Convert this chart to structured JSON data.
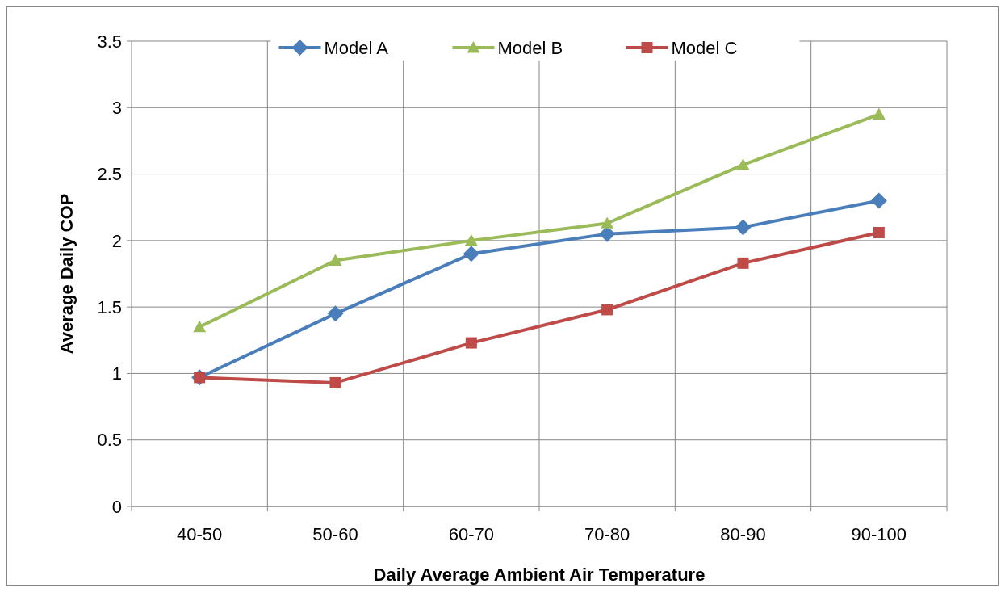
{
  "chart_data": {
    "type": "line",
    "xlabel": "Daily Average Ambient Air Temperature",
    "ylabel": "Average Daily COP",
    "categories": [
      "40-50",
      "50-60",
      "60-70",
      "70-80",
      "80-90",
      "90-100"
    ],
    "series": [
      {
        "name": "Model A",
        "color": "#4a7ebb",
        "marker": "diamond",
        "values": [
          0.97,
          1.45,
          1.9,
          2.05,
          2.1,
          2.3
        ]
      },
      {
        "name": "Model B",
        "color": "#9bbb59",
        "marker": "triangle",
        "values": [
          1.35,
          1.85,
          2.0,
          2.13,
          2.57,
          2.95
        ]
      },
      {
        "name": "Model C",
        "color": "#be4b48",
        "marker": "square",
        "values": [
          0.97,
          0.93,
          1.23,
          1.48,
          1.83,
          2.06
        ]
      }
    ],
    "ylim": [
      0,
      3.5
    ],
    "yticks": [
      0,
      0.5,
      1,
      1.5,
      2,
      2.5,
      3,
      3.5
    ],
    "grid": true,
    "legend": "top"
  }
}
